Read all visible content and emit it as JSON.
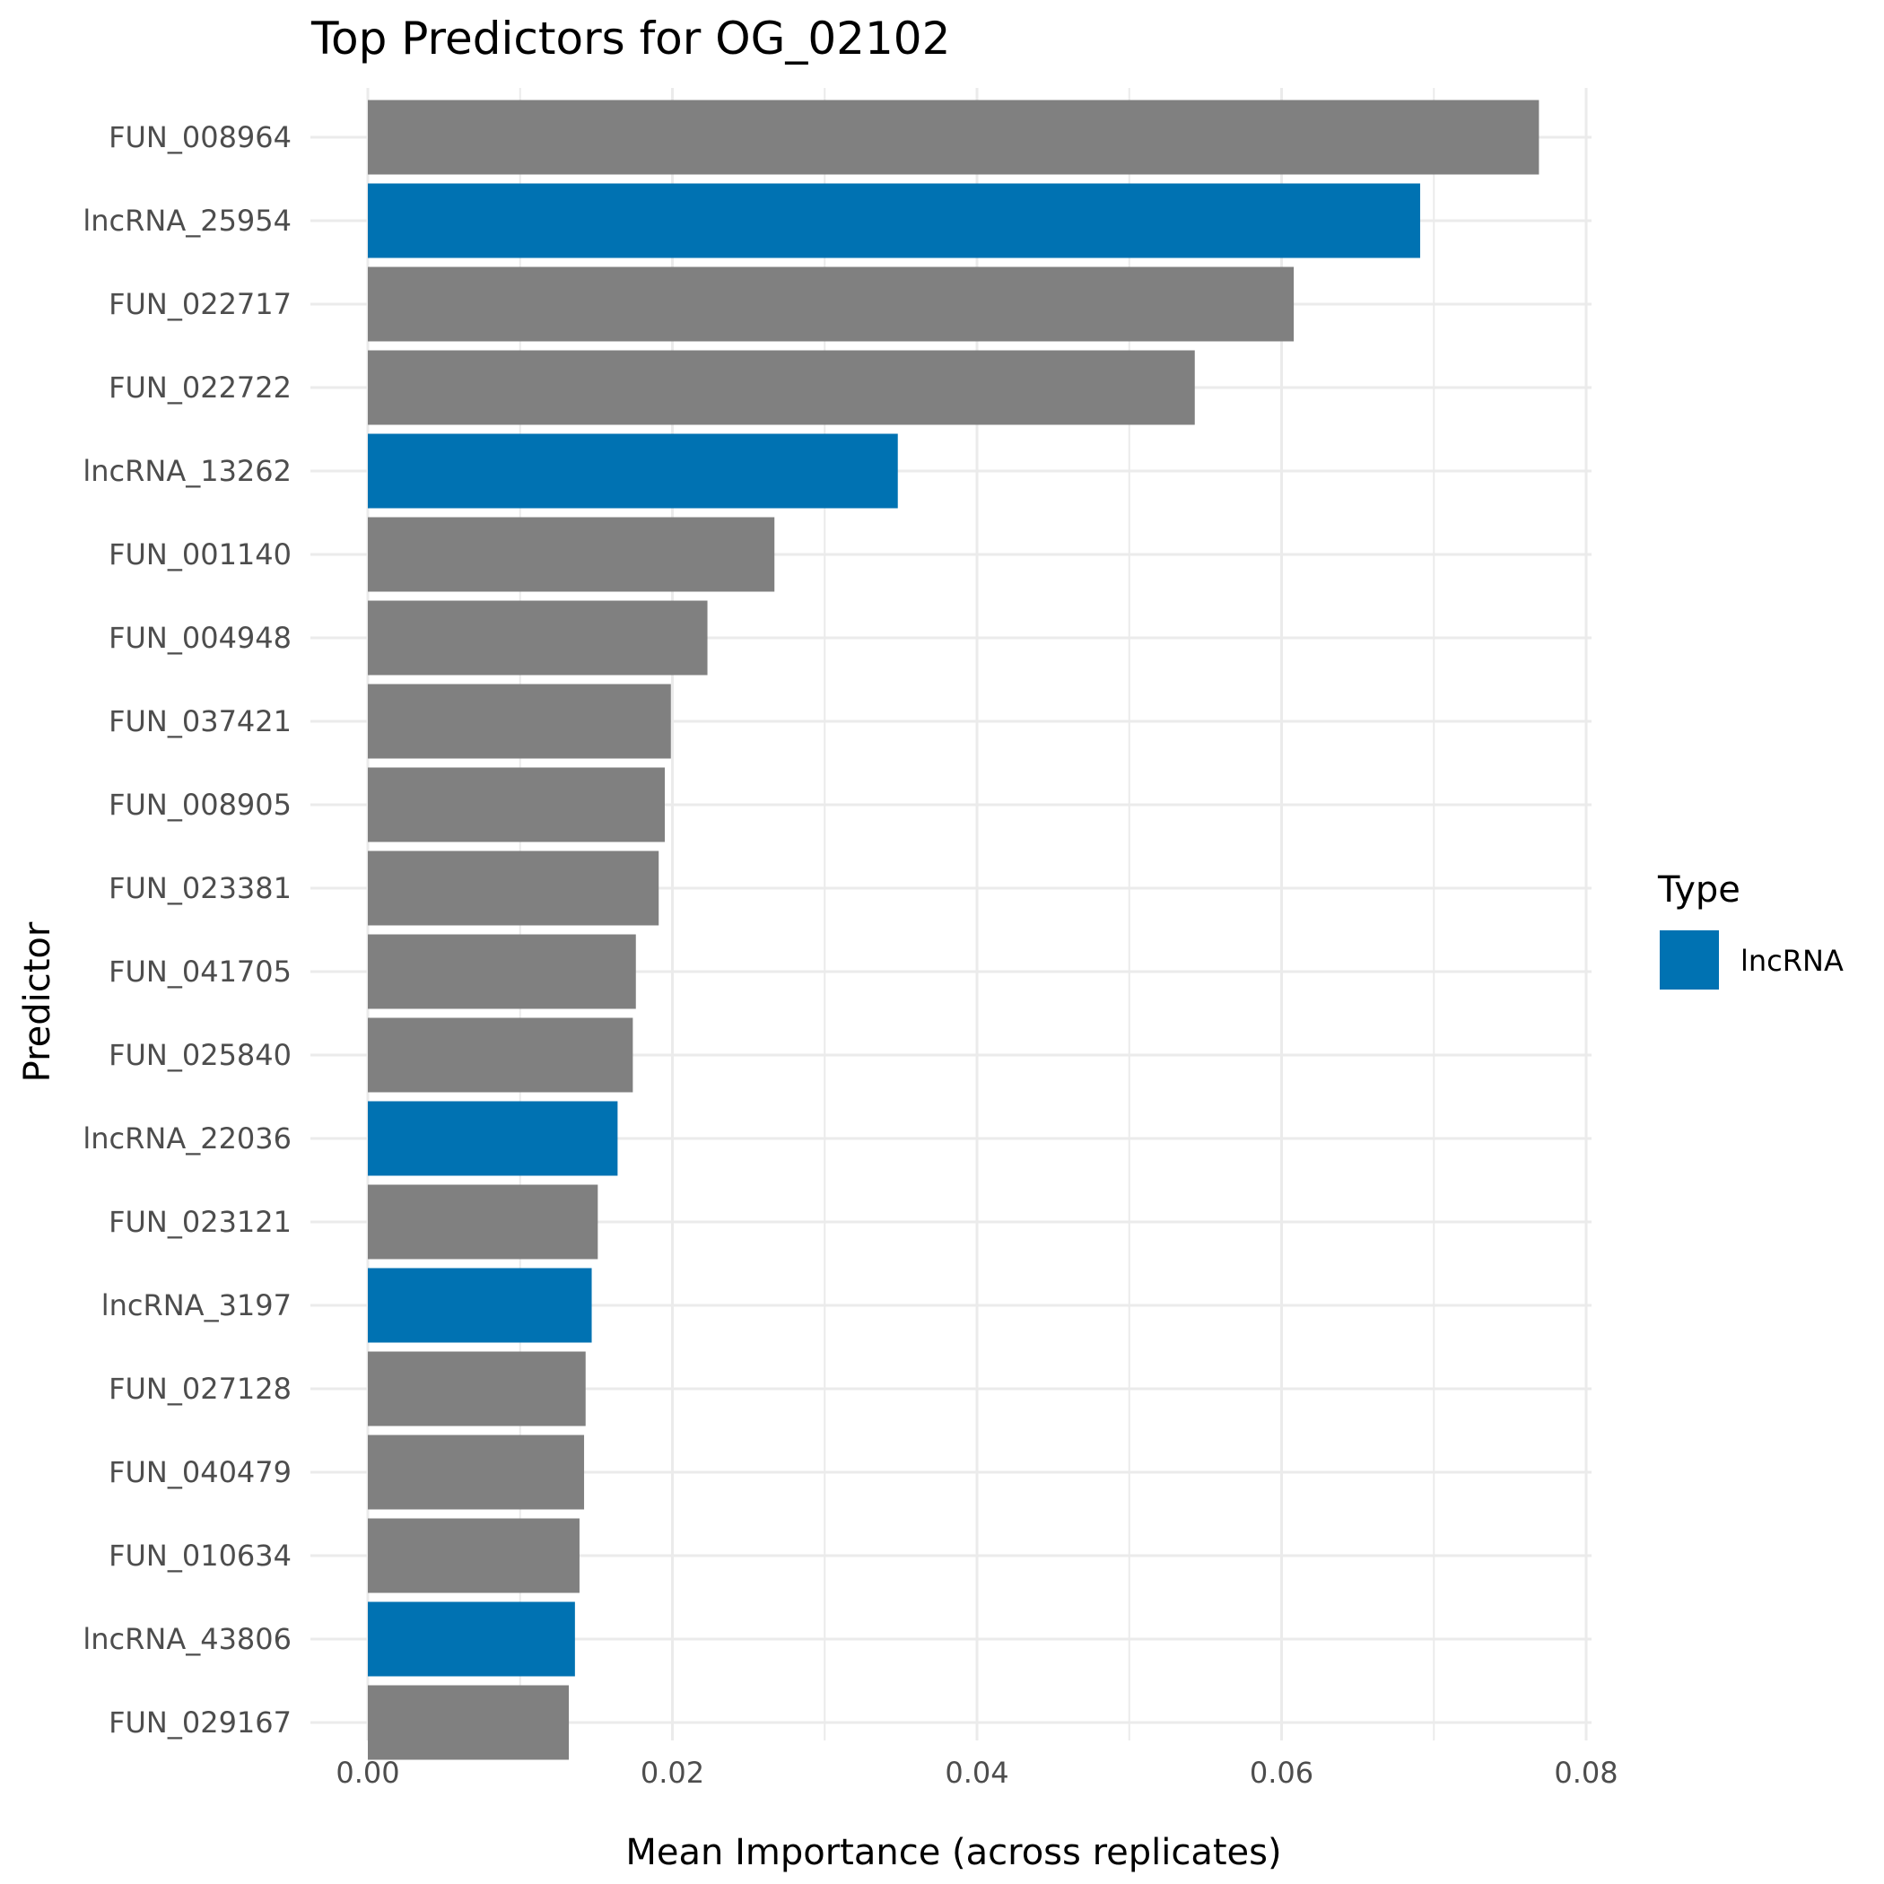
{
  "chart_data": {
    "type": "bar",
    "orientation": "horizontal",
    "title": "Top Predictors for OG_02102",
    "xlabel": "Mean Importance (across replicates)",
    "ylabel": "Predictor",
    "xlim": [
      0,
      0.08
    ],
    "xticks": [
      0,
      0.02,
      0.04,
      0.06,
      0.08
    ],
    "xtick_labels": [
      "0.00",
      "0.02",
      "0.04",
      "0.06",
      "0.08"
    ],
    "grid": true,
    "colors": {
      "gene": "#808080",
      "lncRNA": "#0072B2",
      "grid": "#ebebeb"
    },
    "legend": {
      "title": "Type",
      "position": "right",
      "entries": [
        {
          "label": "lncRNA",
          "color": "#0072B2"
        }
      ]
    },
    "categories": [
      "FUN_008964",
      "lncRNA_25954",
      "FUN_022717",
      "FUN_022722",
      "lncRNA_13262",
      "FUN_001140",
      "FUN_004948",
      "FUN_037421",
      "FUN_008905",
      "FUN_023381",
      "FUN_041705",
      "FUN_025840",
      "lncRNA_22036",
      "FUN_023121",
      "lncRNA_3197",
      "FUN_027128",
      "FUN_040479",
      "FUN_010634",
      "lncRNA_43806",
      "FUN_029167"
    ],
    "values": [
      0.0769,
      0.0691,
      0.0608,
      0.0543,
      0.0348,
      0.0267,
      0.0223,
      0.0199,
      0.0195,
      0.0191,
      0.0176,
      0.0174,
      0.0164,
      0.0151,
      0.0147,
      0.0143,
      0.0142,
      0.0139,
      0.0136,
      0.0132
    ],
    "types": [
      "gene",
      "lncRNA",
      "gene",
      "gene",
      "lncRNA",
      "gene",
      "gene",
      "gene",
      "gene",
      "gene",
      "gene",
      "gene",
      "lncRNA",
      "gene",
      "lncRNA",
      "gene",
      "gene",
      "gene",
      "lncRNA",
      "gene"
    ]
  }
}
